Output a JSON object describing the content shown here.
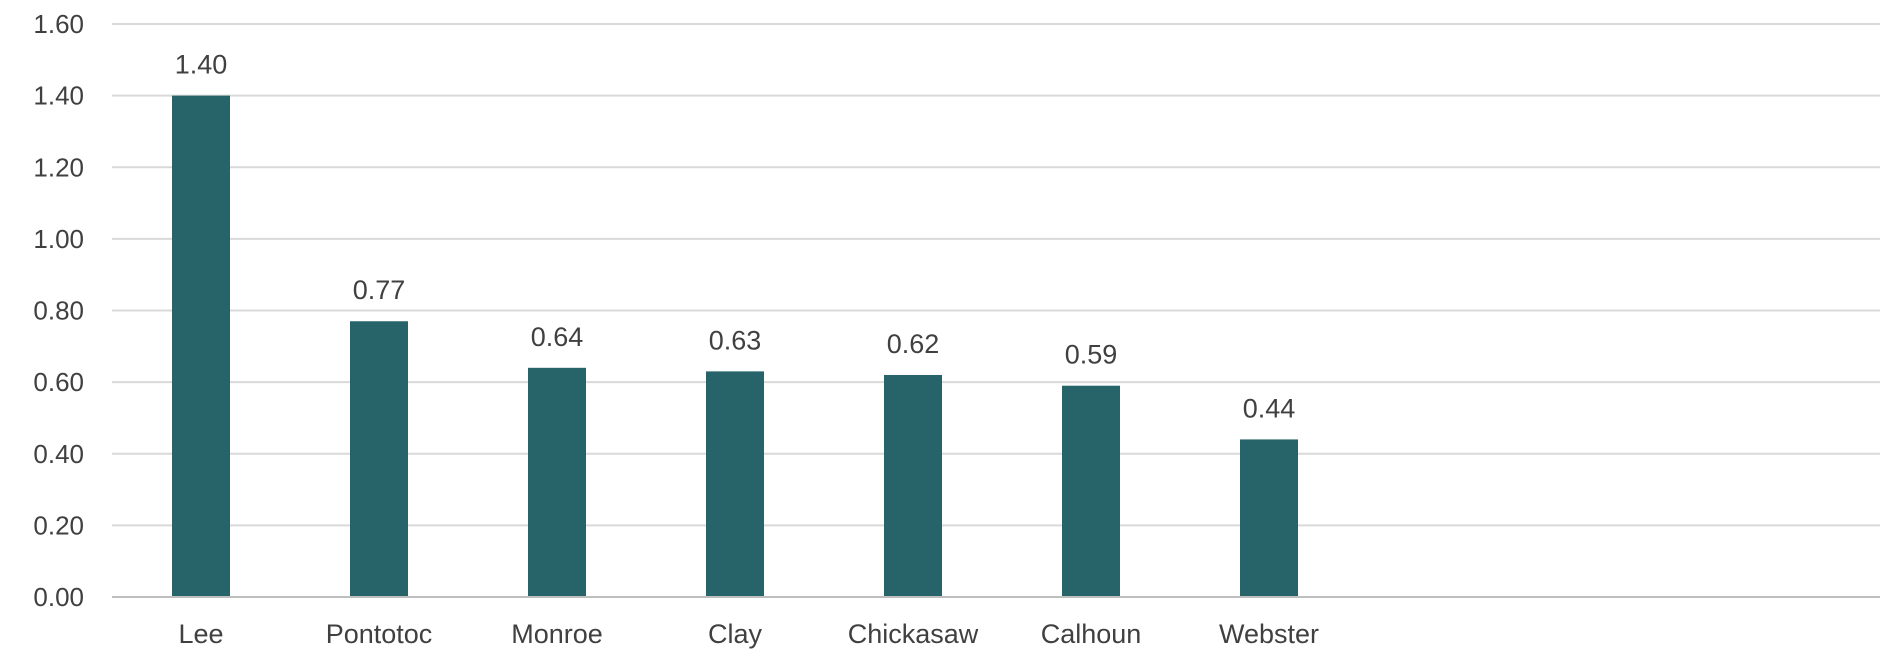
{
  "chart_data": {
    "type": "bar",
    "title": "",
    "xlabel": "",
    "ylabel": "",
    "categories": [
      "Lee",
      "Pontotoc",
      "Monroe",
      "Clay",
      "Chickasaw",
      "Calhoun",
      "Webster"
    ],
    "values": [
      1.4,
      0.77,
      0.64,
      0.63,
      0.62,
      0.59,
      0.44
    ],
    "data_labels": [
      "1.40",
      "0.77",
      "0.64",
      "0.63",
      "0.62",
      "0.59",
      "0.44"
    ],
    "ylim": [
      0,
      1.6
    ],
    "yticks": [
      "0.00",
      "0.20",
      "0.40",
      "0.60",
      "0.80",
      "1.00",
      "1.20",
      "1.40",
      "1.60"
    ],
    "grid": true,
    "legend": "none",
    "colors": {
      "bar": "#276469",
      "grid": "#d9d9d9",
      "axis": "#bfbfbf",
      "text": "#404040"
    }
  }
}
